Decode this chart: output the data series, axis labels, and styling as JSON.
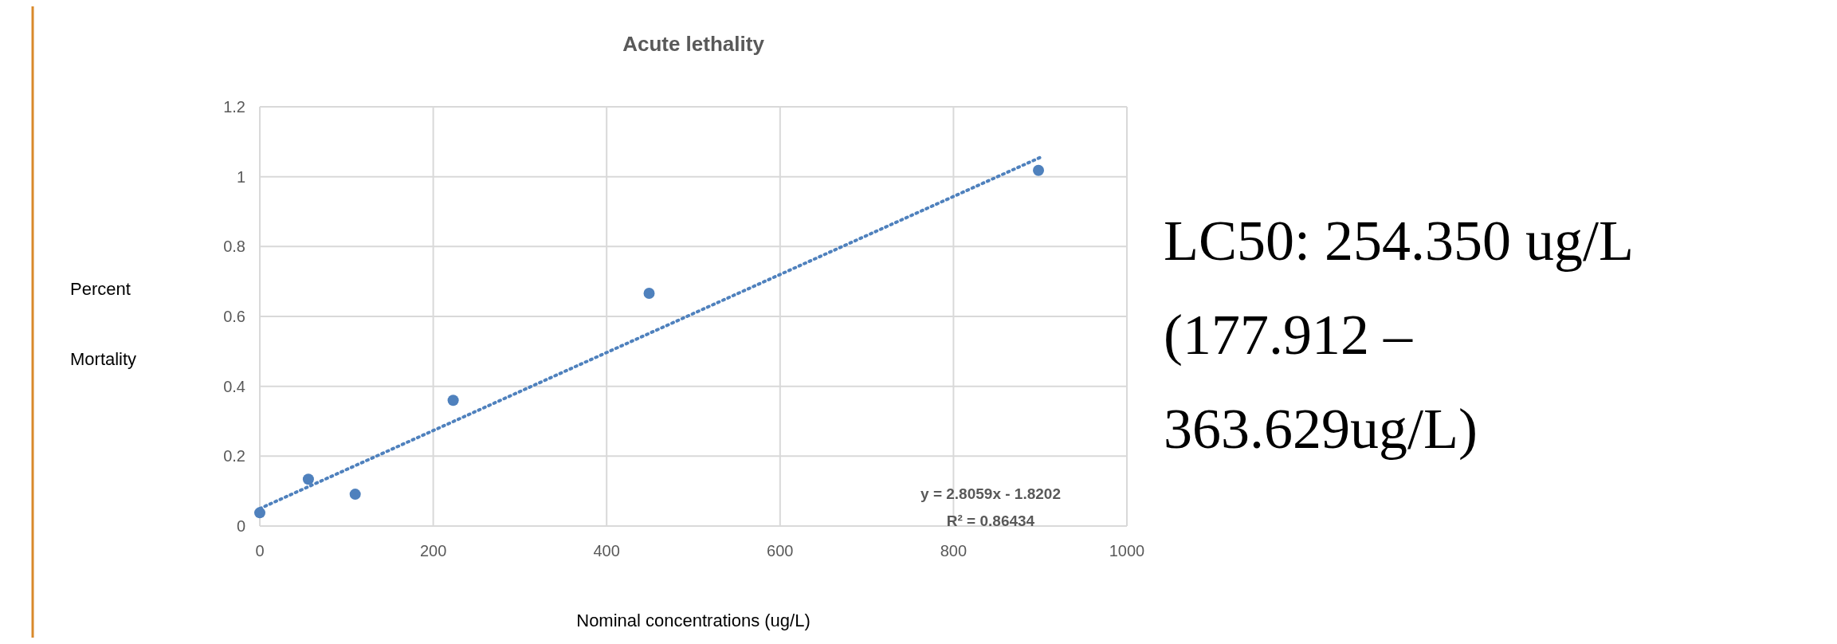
{
  "chart_data": {
    "type": "scatter",
    "title": "Acute lethality",
    "xlabel": "Nominal concentrations (ug/L)",
    "ylabel": "Percent Mortality",
    "xlim": [
      0,
      1000
    ],
    "xticks": [
      0,
      200,
      400,
      600,
      800,
      1000
    ],
    "ylim": [
      0,
      1.2
    ],
    "yticks": [
      0,
      {
        "value": 0.2,
        "label": "0.2"
      },
      {
        "value": 0.4,
        "label": "0.4"
      },
      {
        "value": 0.6,
        "label": "0.6"
      },
      {
        "value": 0.8,
        "label": "0.8"
      },
      1,
      {
        "value": 1.2,
        "label": "1.2"
      }
    ],
    "grid": true,
    "marker": "circle",
    "series": [
      {
        "color": "#4f81bd",
        "x": [
          0,
          56,
          110,
          223,
          449,
          898
        ],
        "values": [
          0.038,
          0.134,
          0.091,
          0.36,
          0.666,
          1.018
        ]
      },
      {
        "type": "line",
        "color": "#4f81bd",
        "marker": "none",
        "line_style": "dotted",
        "x": [
          0,
          900
        ],
        "values": [
          0.05,
          1.055
        ]
      }
    ],
    "annotations": [
      "y = 2.8059x - 1.8202",
      "R² = 0.86434",
      "LC50:  254.350 ug/L",
      "(177.912 –",
      "363.629ug/L)"
    ]
  }
}
